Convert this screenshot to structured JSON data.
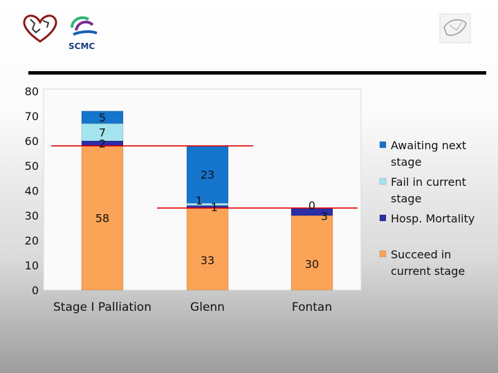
{
  "header": {
    "logo_text": "SCMC"
  },
  "colors": {
    "succeed": "#fba356",
    "mortality": "#2a2ea8",
    "fail": "#a4e4ef",
    "awaiting": "#1574cc",
    "reference_line": "#e00000"
  },
  "chart_data": {
    "type": "bar",
    "stacked": true,
    "categories": [
      "Stage I Palliation",
      "Glenn",
      "Fontan"
    ],
    "series": [
      {
        "name": "Succeed in current stage",
        "values": [
          58,
          33,
          30
        ],
        "labels": [
          "58",
          "33",
          "30"
        ]
      },
      {
        "name": "Hosp. Mortality",
        "values": [
          2,
          1,
          3
        ],
        "labels": [
          "2",
          "1",
          "3"
        ]
      },
      {
        "name": "Fail in current stage",
        "values": [
          7,
          1,
          0
        ],
        "labels": [
          "7",
          "1",
          "0"
        ]
      },
      {
        "name": "Awaiting next stage",
        "values": [
          5,
          23,
          0
        ],
        "labels": [
          "5",
          "23",
          ""
        ]
      }
    ],
    "legend_entries": [
      {
        "line1": "Awaiting next",
        "line2": "stage"
      },
      {
        "line1": "Fail in current",
        "line2": "stage"
      },
      {
        "line1": "Hosp. Mortality",
        "line2": ""
      },
      {
        "line1": "Succeed in",
        "line2": "current stage"
      }
    ],
    "legend_position": "right",
    "reference_lines": [
      58,
      33
    ],
    "ylim": [
      0,
      80
    ],
    "yticks": [
      "0",
      "10",
      "20",
      "30",
      "40",
      "50",
      "60",
      "70",
      "80"
    ],
    "grid": false,
    "xlabel": "",
    "ylabel": "",
    "title": ""
  }
}
